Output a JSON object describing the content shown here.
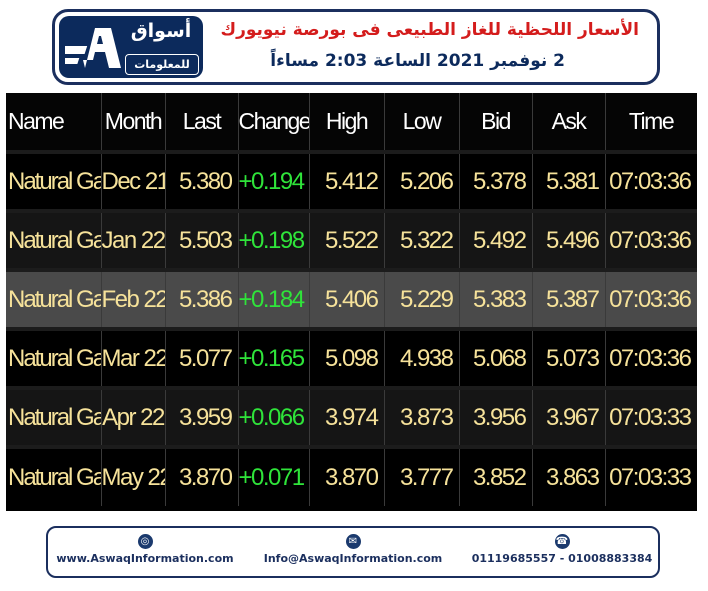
{
  "header": {
    "logo_text": "أسواق",
    "logo_sub": "للمعلومات",
    "title": "الأسعار اللحظية للغاز الطبيعى فى بورصة نيويورك",
    "date_line": "2 نوفمبر 2021 الساعة 2:03 مساءاً"
  },
  "table": {
    "columns": [
      "Name",
      "Month",
      "Last",
      "Change",
      "High",
      "Low",
      "Bid",
      "Ask",
      "Time"
    ],
    "rows": [
      {
        "name": "Natural Gas",
        "month": "Dec 21",
        "last": "5.380",
        "change": "+0.194",
        "high": "5.412",
        "low": "5.206",
        "bid": "5.378",
        "ask": "5.381",
        "time": "07:03:36"
      },
      {
        "name": "Natural Gas",
        "month": "Jan 22",
        "last": "5.503",
        "change": "+0.198",
        "high": "5.522",
        "low": "5.322",
        "bid": "5.492",
        "ask": "5.496",
        "time": "07:03:36"
      },
      {
        "name": "Natural Gas",
        "month": "Feb 22",
        "last": "5.386",
        "change": "+0.184",
        "high": "5.406",
        "low": "5.229",
        "bid": "5.383",
        "ask": "5.387",
        "time": "07:03:36"
      },
      {
        "name": "Natural Gas",
        "month": "Mar 22",
        "last": "5.077",
        "change": "+0.165",
        "high": "5.098",
        "low": "4.938",
        "bid": "5.068",
        "ask": "5.073",
        "time": "07:03:36"
      },
      {
        "name": "Natural Gas",
        "month": "Apr 22",
        "last": "3.959",
        "change": "+0.066",
        "high": "3.974",
        "low": "3.873",
        "bid": "3.956",
        "ask": "3.967",
        "time": "07:03:33"
      },
      {
        "name": "Natural Gas",
        "month": "May 22",
        "last": "3.870",
        "change": "+0.071",
        "high": "3.870",
        "low": "3.777",
        "bid": "3.852",
        "ask": "3.863",
        "time": "07:03:33"
      }
    ]
  },
  "footer": {
    "website": "www.AswaqInformation.com",
    "email": "Info@AswaqInformation.com",
    "phones": "01119685557 - 01008883384",
    "website_icon": "globe-icon",
    "email_icon": "envelope-icon",
    "phone_icon": "phone-icon"
  },
  "colors": {
    "brand_navy": "#0c2a5c",
    "title_red": "#d41c1c",
    "price_text": "#f6e29a",
    "change_positive": "#2fe43a",
    "highlight_row": "#4a4a4a"
  }
}
